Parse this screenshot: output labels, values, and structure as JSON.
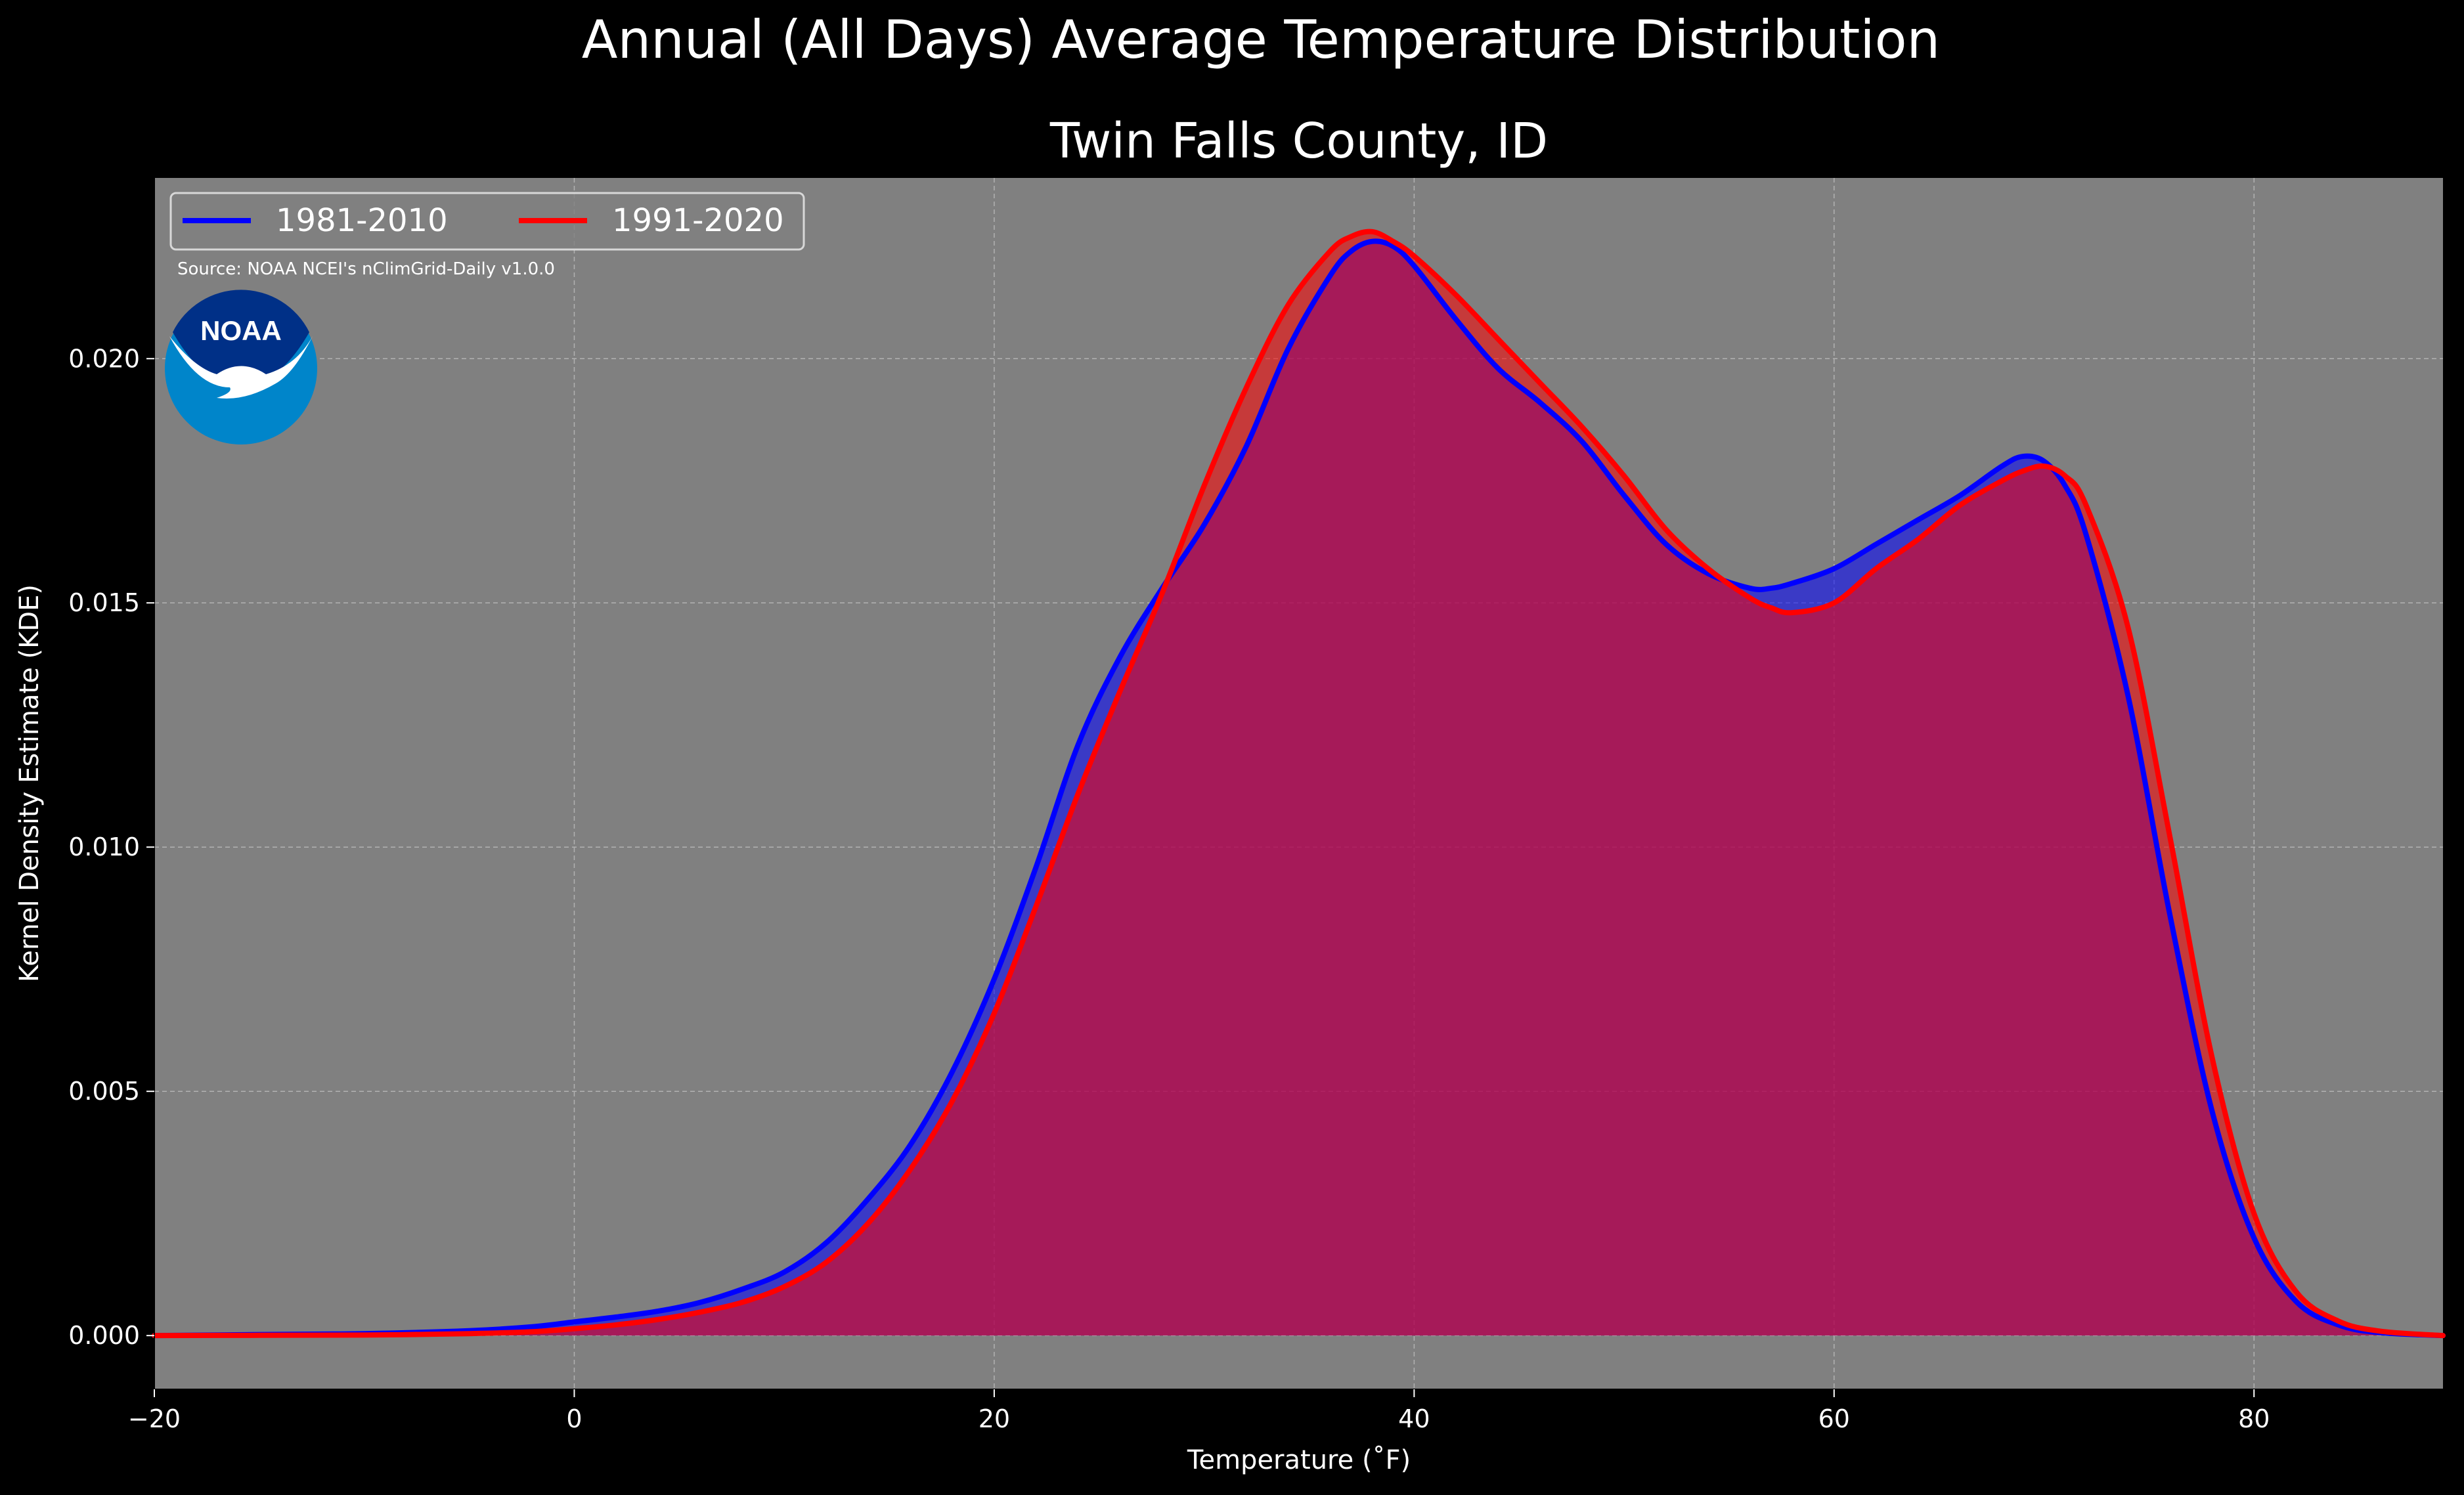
{
  "suptitle": "Annual (All Days) Average Temperature Distribution",
  "source": "Source: NOAA NCEI's nClimGrid-Daily v1.0.0",
  "logo": {
    "text": "NOAA",
    "colors": {
      "outer": "#0085CA",
      "inner": "#003087",
      "bird": "#FFFFFF"
    }
  },
  "colors": {
    "figure_bg": "#000000",
    "axes_bg": "#808080",
    "grid": "#BEBEBE",
    "text": "#FFFFFF"
  },
  "chart_data": {
    "type": "area",
    "title": "Twin Falls County, ID",
    "xlabel": "Temperature (˚F)",
    "ylabel": "Kernel Density Estimate (KDE)",
    "xlim": [
      -20,
      89
    ],
    "ylim": [
      -0.0011,
      0.0237
    ],
    "xticks": [
      -20,
      0,
      20,
      40,
      60,
      80
    ],
    "yticks": [
      0.0,
      0.005,
      0.01,
      0.015,
      0.02
    ],
    "xtick_labels": [
      "−20",
      "0",
      "20",
      "40",
      "60",
      "80"
    ],
    "ytick_labels": [
      "0.000",
      "0.005",
      "0.010",
      "0.015",
      "0.020"
    ],
    "grid": true,
    "legend": {
      "placement": "upper-left",
      "ncol": 2
    },
    "series": [
      {
        "name": "1981-2010",
        "line_color": "#0000FF",
        "fill_color": "#0000FF",
        "x": [
          -20,
          -15,
          -10,
          -5,
          -2,
          0,
          2,
          4,
          6,
          8,
          10,
          12,
          14,
          16,
          18,
          20,
          22,
          24,
          26,
          28,
          30,
          32,
          34,
          36,
          37,
          38,
          39,
          40,
          42,
          44,
          46,
          48,
          50,
          52,
          54,
          56,
          57,
          58,
          60,
          62,
          64,
          66,
          68,
          69,
          70,
          71,
          72,
          74,
          76,
          78,
          80,
          82,
          84,
          86,
          89
        ],
        "y": [
          0.0,
          2e-05,
          4e-05,
          0.0001,
          0.00018,
          0.00028,
          0.00038,
          0.0005,
          0.00068,
          0.00095,
          0.0013,
          0.0019,
          0.0028,
          0.0039,
          0.0054,
          0.0073,
          0.0096,
          0.0121,
          0.0139,
          0.0153,
          0.0166,
          0.0182,
          0.0202,
          0.0217,
          0.0222,
          0.0224,
          0.0223,
          0.0219,
          0.0208,
          0.0198,
          0.0191,
          0.0183,
          0.0172,
          0.0162,
          0.0156,
          0.0153,
          0.0153,
          0.0154,
          0.0157,
          0.0162,
          0.0167,
          0.0172,
          0.0178,
          0.018,
          0.0179,
          0.0174,
          0.0164,
          0.0131,
          0.0086,
          0.0046,
          0.002,
          0.0007,
          0.00022,
          6e-05,
          0.0
        ]
      },
      {
        "name": "1991-2020",
        "line_color": "#FF0000",
        "fill_color": "#FF0000",
        "x": [
          -20,
          -15,
          -10,
          -5,
          -2,
          0,
          2,
          4,
          6,
          8,
          10,
          12,
          14,
          16,
          18,
          20,
          22,
          24,
          26,
          28,
          30,
          32,
          34,
          36,
          37,
          38,
          39,
          40,
          42,
          44,
          46,
          48,
          50,
          52,
          54,
          56,
          57,
          58,
          60,
          62,
          64,
          66,
          68,
          69,
          70,
          71,
          72,
          74,
          76,
          78,
          80,
          82,
          84,
          86,
          89
        ],
        "y": [
          0.0,
          5e-06,
          1e-05,
          4e-05,
          8e-05,
          0.00014,
          0.00022,
          0.00033,
          0.00048,
          0.00068,
          0.001,
          0.0015,
          0.0023,
          0.0034,
          0.0048,
          0.0066,
          0.0088,
          0.0111,
          0.0132,
          0.0152,
          0.0174,
          0.0194,
          0.0211,
          0.0222,
          0.0225,
          0.0226,
          0.0224,
          0.0221,
          0.0213,
          0.0204,
          0.0195,
          0.0186,
          0.0176,
          0.0165,
          0.0157,
          0.0151,
          0.0149,
          0.0148,
          0.015,
          0.0157,
          0.0163,
          0.017,
          0.0175,
          0.0177,
          0.0178,
          0.0176,
          0.017,
          0.0145,
          0.0102,
          0.0057,
          0.0025,
          0.0009,
          0.0003,
          9e-05,
          0.0
        ]
      }
    ]
  }
}
